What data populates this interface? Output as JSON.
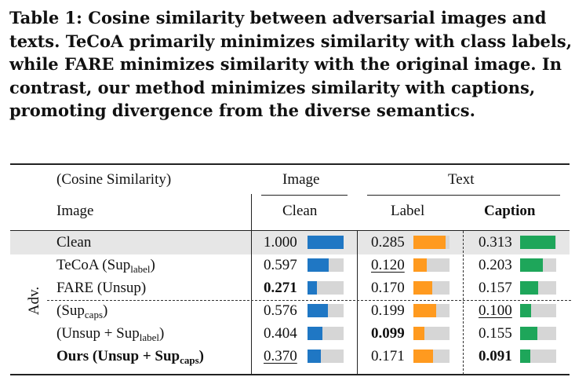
{
  "caption": {
    "label": "Table 1:",
    "text": "Cosine similarity between adversarial images and texts. TeCoA primarily minimizes similarity with class labels, while FARE minimizes similarity with the original image. In contrast, our method minimizes similarity with captions, promoting divergence from the diverse semantics."
  },
  "header": {
    "corner": "(Cosine Similarity)",
    "group_image": "Image",
    "group_text": "Text",
    "row_label": "Image",
    "col_clean": "Clean",
    "col_label": "Label",
    "col_caption": "Caption"
  },
  "adv_label": "Adv.",
  "colors": {
    "clean": "#1f77c4",
    "label": "#ff9a1f",
    "caption": "#1ea65a",
    "bar_bg": "#d6d6d6",
    "shade": "#e6e6e6"
  },
  "rows": [
    {
      "name_main": "Clean",
      "name_sub": "",
      "name_tail": "",
      "bold_name": false,
      "clean": "1.000",
      "label": "0.285",
      "caption": "0.313",
      "clean_v": 1.0,
      "label_v": 0.285,
      "caption_v": 0.313,
      "clean_style": "",
      "label_style": "",
      "caption_style": ""
    },
    {
      "name_main": "TeCoA (Sup",
      "name_sub": "label",
      "name_tail": ")",
      "bold_name": false,
      "clean": "0.597",
      "label": "0.120",
      "caption": "0.203",
      "clean_v": 0.597,
      "label_v": 0.12,
      "caption_v": 0.203,
      "clean_style": "",
      "label_style": "ul",
      "caption_style": ""
    },
    {
      "name_main": "FARE (Unsup)",
      "name_sub": "",
      "name_tail": "",
      "bold_name": false,
      "clean": "0.271",
      "label": "0.170",
      "caption": "0.157",
      "clean_v": 0.271,
      "label_v": 0.17,
      "caption_v": 0.157,
      "clean_style": "bold",
      "label_style": "",
      "caption_style": ""
    },
    {
      "name_main": "(Sup",
      "name_sub": "caps",
      "name_tail": ")",
      "bold_name": false,
      "clean": "0.576",
      "label": "0.199",
      "caption": "0.100",
      "clean_v": 0.576,
      "label_v": 0.199,
      "caption_v": 0.1,
      "clean_style": "",
      "label_style": "",
      "caption_style": "ul"
    },
    {
      "name_main": "(Unsup + Sup",
      "name_sub": "label",
      "name_tail": ")",
      "bold_name": false,
      "clean": "0.404",
      "label": "0.099",
      "caption": "0.155",
      "clean_v": 0.404,
      "label_v": 0.099,
      "caption_v": 0.155,
      "clean_style": "",
      "label_style": "bold",
      "caption_style": ""
    },
    {
      "name_main": "Ours (Unsup + Sup",
      "name_sub": "caps",
      "name_tail": ")",
      "bold_name": true,
      "clean": "0.370",
      "label": "0.171",
      "caption": "0.091",
      "clean_v": 0.37,
      "label_v": 0.171,
      "caption_v": 0.091,
      "clean_style": "ul",
      "label_style": "",
      "caption_style": "bold"
    }
  ]
}
